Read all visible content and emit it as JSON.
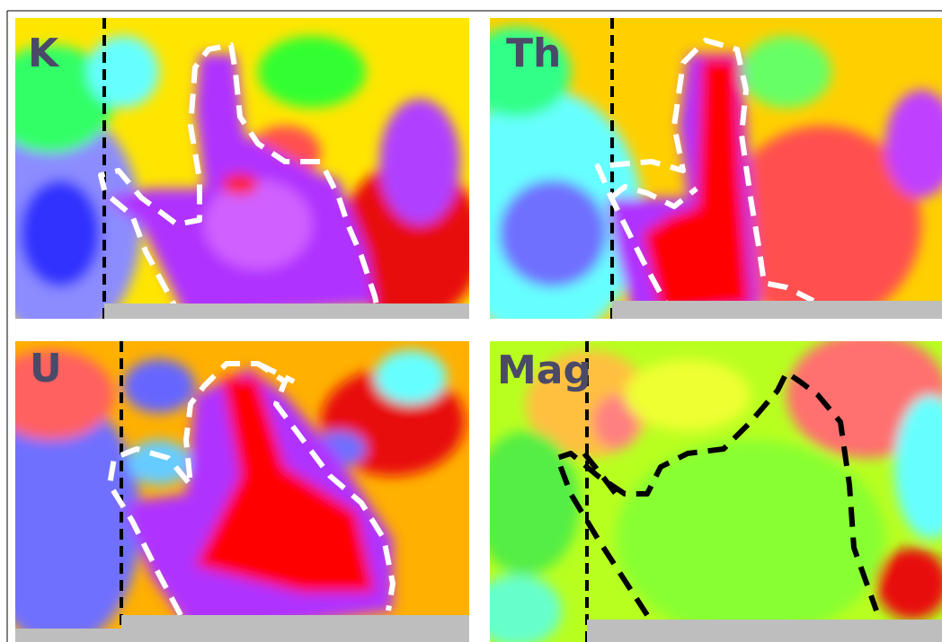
{
  "panels": [
    {
      "label": "K"
    },
    {
      "label": "Th"
    },
    {
      "label": "U"
    },
    {
      "label": "Mag"
    }
  ]
}
